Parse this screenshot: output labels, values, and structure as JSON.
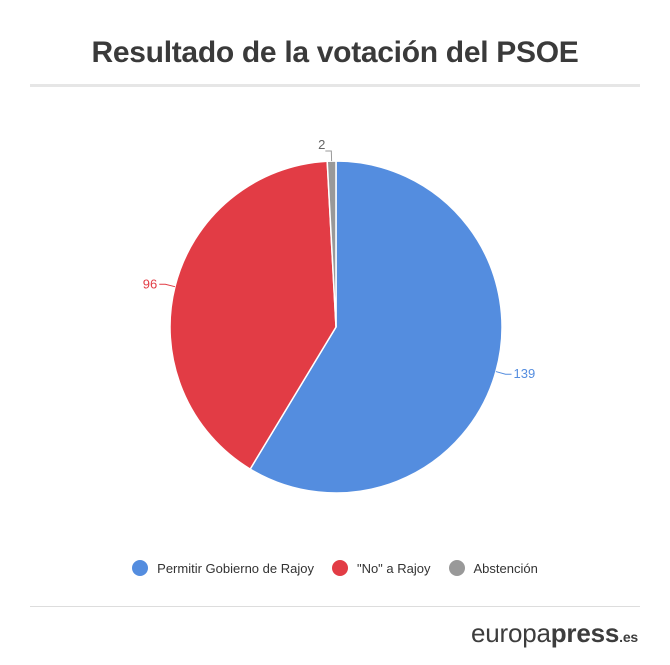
{
  "chart_data": {
    "type": "pie",
    "title": "Resultado de la votación del PSOE",
    "slices": [
      {
        "label": "Permitir Gobierno de Rajoy",
        "value": 139,
        "color": "#548ddf"
      },
      {
        "label": "\"No\" a Rajoy",
        "value": 96,
        "color": "#e23c45"
      },
      {
        "label": "Abstención",
        "value": 2,
        "color": "#999999"
      }
    ],
    "legend_position": "bottom"
  },
  "brand": {
    "part1": "europa",
    "part2": "press",
    "part3": ".es"
  }
}
